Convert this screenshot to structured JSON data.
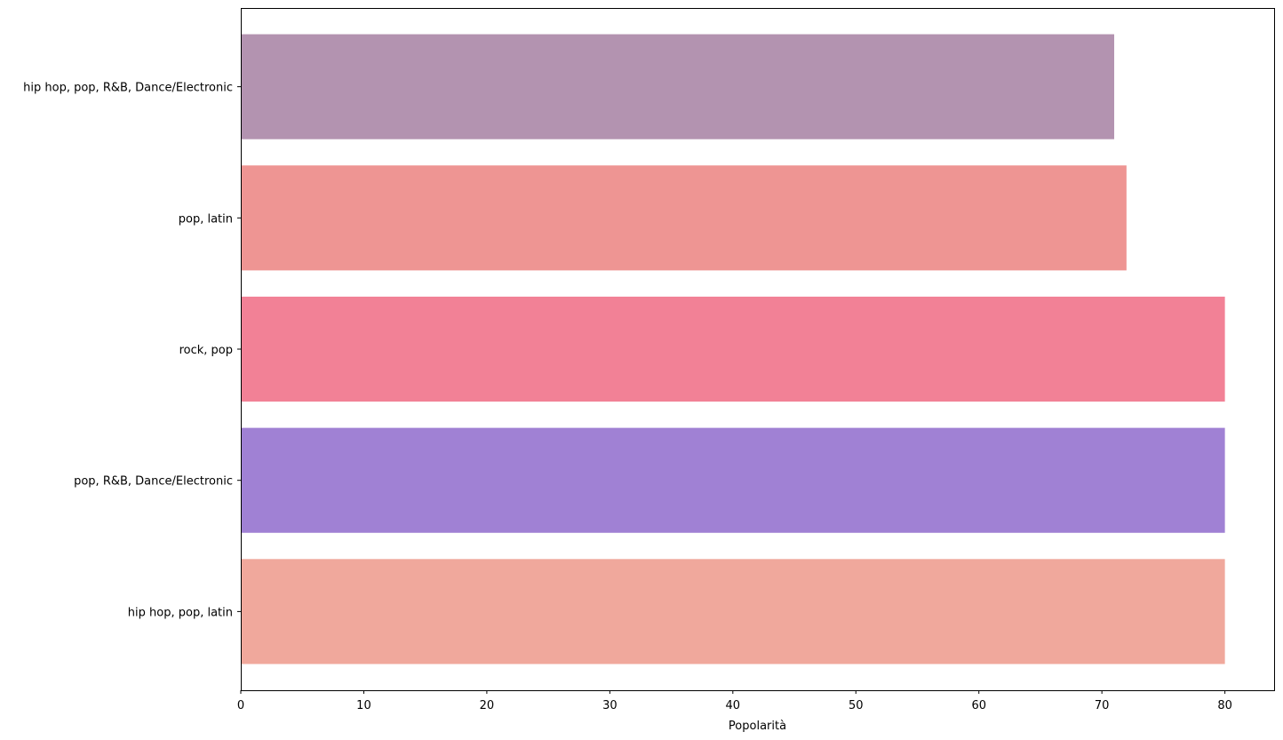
{
  "chart_data": {
    "type": "bar",
    "orientation": "horizontal",
    "categories": [
      "hip hop, pop, latin",
      "pop, R&B, Dance/Electronic",
      "rock, pop",
      "pop, latin",
      "hip hop, pop, R&B, Dance/Electronic"
    ],
    "values": [
      80,
      80,
      80,
      72,
      71
    ],
    "colors": [
      "#f0a89c",
      "#a081d4",
      "#f28196",
      "#ee9593",
      "#b393b0"
    ],
    "title": "",
    "xlabel": "Popolarità",
    "ylabel": "",
    "xlim": [
      0,
      84
    ],
    "xticks": [
      0,
      10,
      20,
      30,
      40,
      50,
      60,
      70,
      80
    ],
    "grid": false,
    "legend": "none"
  }
}
